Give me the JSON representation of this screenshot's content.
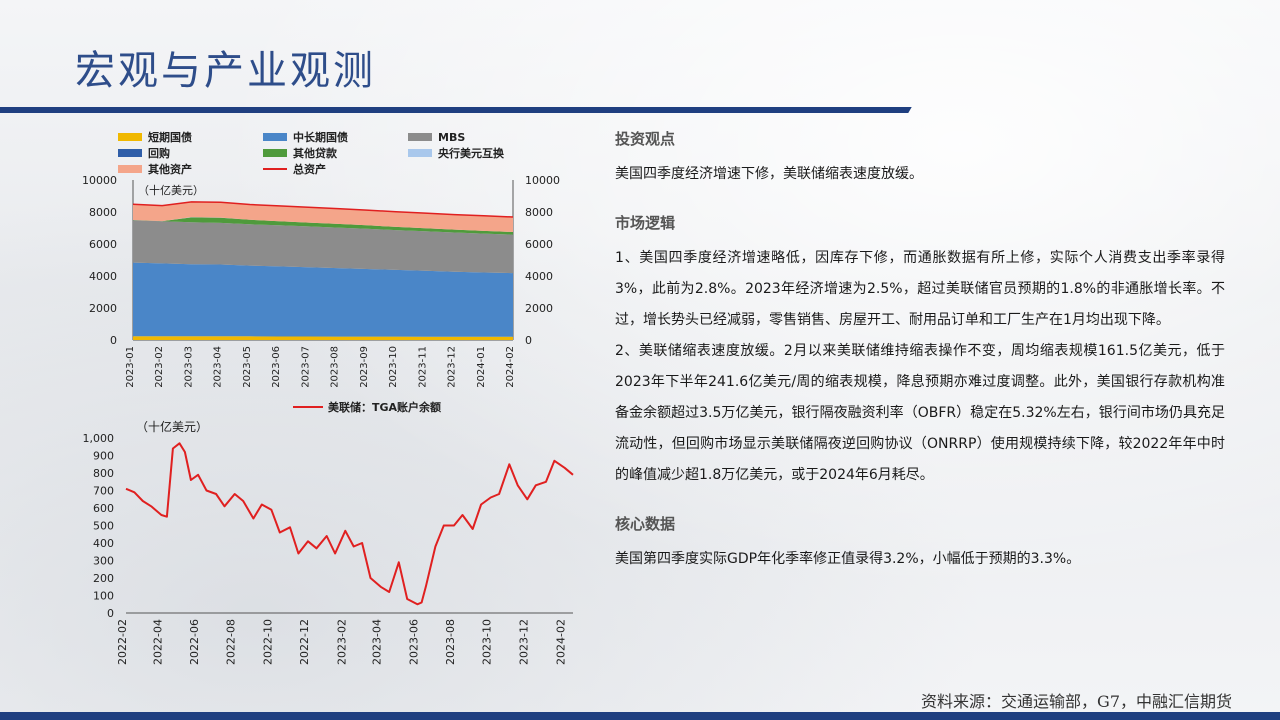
{
  "title": "宏观与产业观测",
  "source": "资料来源：交通运输部，G7，中融汇信期货",
  "sections": [
    {
      "heading": "投资观点",
      "paragraphs": [
        "美国四季度经济增速下修，美联储缩表速度放缓。"
      ]
    },
    {
      "heading": "市场逻辑",
      "paragraphs": [
        "1、美国四季度经济增速略低，因库存下修，而通胀数据有所上修，实际个人消费支出季率录得3%，此前为2.8%。2023年经济增速为2.5%，超过美联储官员预期的1.8%的非通胀增长率。不过，增长势头已经减弱，零售销售、房屋开工、耐用品订单和工厂生产在1月均出现下降。",
        "2、美联储缩表速度放缓。2月以来美联储维持缩表操作不变，周均缩表规模161.5亿美元，低于2023年下半年241.6亿美元/周的缩表规模，降息预期亦难过度调整。此外，美国银行存款机构准备金余额超过3.5万亿美元，银行隔夜融资利率（OBFR）稳定在5.32%左右，银行间市场仍具充足流动性，但回购市场显示美联储隔夜逆回购协议（ONRRP）使用规模持续下降，较2022年年中时的峰值减少超1.8万亿美元，或于2024年6月耗尽。"
      ]
    },
    {
      "heading": "核心数据",
      "paragraphs": [
        "美国第四季度实际GDP年化季率修正值录得3.2%，小幅低于预期的3.3%。"
      ]
    }
  ],
  "chart_data": [
    {
      "type": "area",
      "unit_label": "（十亿美元）",
      "legend": [
        {
          "name": "短期国债",
          "color": "#f0b800"
        },
        {
          "name": "中长期国债",
          "color": "#4a86c8"
        },
        {
          "name": "MBS",
          "color": "#8c8c8c"
        },
        {
          "name": "回购",
          "color": "#2f5ea8"
        },
        {
          "name": "其他贷款",
          "color": "#4f9a3c"
        },
        {
          "name": "央行美元互换",
          "color": "#a9c8ec"
        },
        {
          "name": "其他资产",
          "color": "#f4a58a"
        },
        {
          "name": "总资产",
          "color": "#e02020"
        }
      ],
      "x_labels": [
        "2023-01",
        "2023-02",
        "2023-03",
        "2023-04",
        "2023-05",
        "2023-06",
        "2023-07",
        "2023-08",
        "2023-09",
        "2023-10",
        "2023-11",
        "2023-12",
        "2024-01",
        "2024-02"
      ],
      "ylim": [
        0,
        10000
      ],
      "y_ticks": [
        0,
        2000,
        4000,
        6000,
        8000,
        10000
      ],
      "series": [
        {
          "name": "短期国债",
          "values": [
            240,
            240,
            240,
            240,
            230,
            220,
            220,
            215,
            210,
            210,
            205,
            200,
            200,
            200
          ]
        },
        {
          "name": "中长期国债",
          "values": [
            4600,
            4550,
            4500,
            4480,
            4420,
            4380,
            4330,
            4280,
            4230,
            4170,
            4120,
            4070,
            4020,
            3980
          ]
        },
        {
          "name": "MBS",
          "values": [
            2650,
            2630,
            2620,
            2600,
            2580,
            2570,
            2550,
            2530,
            2510,
            2490,
            2470,
            2450,
            2430,
            2410
          ]
        },
        {
          "name": "回购",
          "values": [
            0,
            0,
            0,
            0,
            0,
            0,
            0,
            0,
            0,
            0,
            0,
            0,
            0,
            0
          ]
        },
        {
          "name": "其他贷款",
          "values": [
            10,
            10,
            300,
            320,
            280,
            250,
            240,
            230,
            220,
            200,
            190,
            180,
            170,
            160
          ]
        },
        {
          "name": "央行美元互换",
          "values": [
            0,
            0,
            20,
            10,
            0,
            0,
            0,
            0,
            0,
            0,
            0,
            0,
            0,
            0
          ]
        },
        {
          "name": "其他资产",
          "values": [
            980,
            970,
            950,
            960,
            960,
            960,
            960,
            955,
            950,
            945,
            945,
            940,
            940,
            940
          ]
        }
      ],
      "total": {
        "name": "总资产",
        "values": [
          8480,
          8400,
          8630,
          8610,
          8470,
          8380,
          8300,
          8210,
          8120,
          8015,
          7930,
          7840,
          7760,
          7690
        ]
      }
    },
    {
      "type": "line",
      "title": "美联储：TGA账户余额",
      "unit_label": "（十亿美元）",
      "color": "#e02020",
      "ylim": [
        0,
        1000
      ],
      "y_ticks": [
        0,
        100,
        200,
        300,
        400,
        500,
        600,
        700,
        800,
        900,
        1000
      ],
      "y_tick_labels": [
        "0",
        "100",
        "200",
        "300",
        "400",
        "500",
        "600",
        "700",
        "800",
        "900",
        "1,000"
      ],
      "x_labels": [
        "2022-02",
        "2022-04",
        "2022-06",
        "2022-08",
        "2022-10",
        "2022-12",
        "2023-02",
        "2023-04",
        "2023-06",
        "2023-08",
        "2023-10",
        "2023-12",
        "2024-02"
      ],
      "x": [
        "2022-02-01",
        "2022-02-15",
        "2022-03-01",
        "2022-03-15",
        "2022-04-01",
        "2022-04-10",
        "2022-04-20",
        "2022-05-01",
        "2022-05-10",
        "2022-05-20",
        "2022-06-01",
        "2022-06-15",
        "2022-07-01",
        "2022-07-15",
        "2022-08-01",
        "2022-08-15",
        "2022-09-01",
        "2022-09-15",
        "2022-10-01",
        "2022-10-15",
        "2022-11-01",
        "2022-11-15",
        "2022-12-01",
        "2022-12-15",
        "2023-01-01",
        "2023-01-15",
        "2023-02-01",
        "2023-02-15",
        "2023-03-01",
        "2023-03-15",
        "2023-04-01",
        "2023-04-15",
        "2023-05-01",
        "2023-05-15",
        "2023-06-01",
        "2023-06-08",
        "2023-06-15",
        "2023-07-01",
        "2023-07-15",
        "2023-08-01",
        "2023-08-15",
        "2023-09-01",
        "2023-09-15",
        "2023-10-01",
        "2023-10-15",
        "2023-11-01",
        "2023-11-15",
        "2023-12-01",
        "2023-12-15",
        "2024-01-01",
        "2024-01-15",
        "2024-02-01",
        "2024-02-15"
      ],
      "values": [
        710,
        690,
        640,
        610,
        560,
        550,
        940,
        970,
        920,
        760,
        790,
        700,
        680,
        610,
        680,
        640,
        540,
        620,
        590,
        460,
        490,
        340,
        410,
        370,
        440,
        340,
        470,
        380,
        400,
        200,
        150,
        120,
        290,
        80,
        50,
        60,
        150,
        380,
        500,
        500,
        560,
        480,
        620,
        660,
        680,
        850,
        730,
        650,
        730,
        750,
        870,
        830,
        790
      ]
    }
  ]
}
